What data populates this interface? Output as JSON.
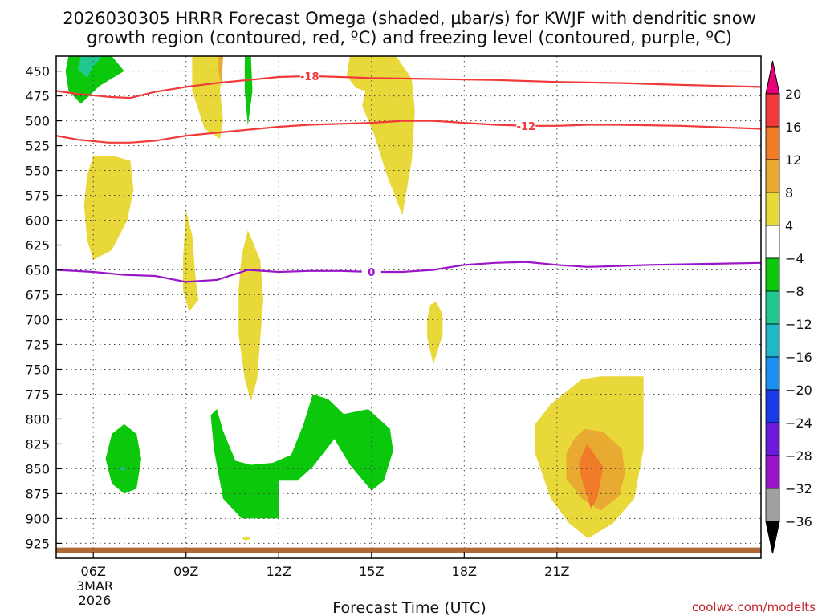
{
  "chart_data": {
    "type": "contour",
    "title_line1": "2026030305 HRRR Forecast Omega (shaded, µbar/s) for KWJF with dendritic snow",
    "title_line2": "growth region (contoured, red, ºC) and freezing level (contoured, purple, ºC)",
    "xlabel": "Forecast Time (UTC)",
    "credit": "coolwx.com/modelts",
    "date_label": [
      "3MAR",
      "2026"
    ],
    "x_range_hours": [
      4.8,
      27.6
    ],
    "x_ticks": [
      {
        "hour": 6,
        "label": "06Z"
      },
      {
        "hour": 9,
        "label": "09Z"
      },
      {
        "hour": 12,
        "label": "12Z"
      },
      {
        "hour": 15,
        "label": "15Z"
      },
      {
        "hour": 18,
        "label": "18Z"
      },
      {
        "hour": 21,
        "label": "21Z"
      }
    ],
    "y_range_mb": [
      435,
      940
    ],
    "y_ticks": [
      450,
      475,
      500,
      525,
      550,
      575,
      600,
      625,
      650,
      675,
      700,
      725,
      750,
      775,
      800,
      825,
      850,
      875,
      900,
      925
    ],
    "colorbar": {
      "labels": [
        "20",
        "16",
        "12",
        "8",
        "4",
        "−4",
        "−8",
        "−12",
        "−16",
        "−20",
        "−24",
        "−28",
        "−32",
        "−36"
      ],
      "top_arrow_color": "#e8007a",
      "bottom_arrow_color": "#000000",
      "colors": [
        "#f23a3a",
        "#f07c2a",
        "#e8aa30",
        "#e8d83a",
        "#ffffff",
        "#0cc80c",
        "#20c890",
        "#20b8c8",
        "#1a90f0",
        "#1a3ae8",
        "#6a1ad8",
        "#9a14c8",
        "#a0a0a0"
      ]
    },
    "series": [
      {
        "name": "temp -18C",
        "label": "-18",
        "color": "#f03a3a",
        "points": [
          [
            4.8,
            470
          ],
          [
            5.5,
            473
          ],
          [
            6.5,
            476
          ],
          [
            7.2,
            477
          ],
          [
            8.0,
            471
          ],
          [
            9.0,
            466
          ],
          [
            10.0,
            462
          ],
          [
            11.0,
            459
          ],
          [
            12.0,
            456
          ],
          [
            13.0,
            455
          ],
          [
            14.0,
            456
          ],
          [
            15.0,
            457
          ],
          [
            17.0,
            458
          ],
          [
            19.0,
            459
          ],
          [
            21.0,
            461
          ],
          [
            23.0,
            462
          ],
          [
            25.0,
            464
          ],
          [
            27.6,
            466
          ]
        ]
      },
      {
        "name": "temp -12C",
        "label": "-12",
        "color": "#f03a3a",
        "points": [
          [
            4.8,
            515
          ],
          [
            5.5,
            519
          ],
          [
            6.5,
            522
          ],
          [
            7.2,
            522
          ],
          [
            8.0,
            520
          ],
          [
            9.0,
            515
          ],
          [
            10.0,
            512
          ],
          [
            11.0,
            509
          ],
          [
            12.0,
            506
          ],
          [
            13.0,
            504
          ],
          [
            14.0,
            503
          ],
          [
            15.0,
            502
          ],
          [
            16.0,
            500
          ],
          [
            17.0,
            500
          ],
          [
            18.0,
            502
          ],
          [
            19.0,
            504
          ],
          [
            20.0,
            505
          ],
          [
            21.0,
            505
          ],
          [
            22.0,
            504
          ],
          [
            23.0,
            504
          ],
          [
            25.0,
            505
          ],
          [
            27.6,
            508
          ]
        ]
      },
      {
        "name": "freezing level 0C",
        "label": "0",
        "color": "#9a14c8",
        "points": [
          [
            4.8,
            650
          ],
          [
            6.0,
            652
          ],
          [
            7.0,
            655
          ],
          [
            8.0,
            656
          ],
          [
            9.0,
            662
          ],
          [
            10.0,
            660
          ],
          [
            11.0,
            650
          ],
          [
            12.0,
            652
          ],
          [
            13.0,
            651
          ],
          [
            14.0,
            651
          ],
          [
            15.0,
            652
          ],
          [
            16.0,
            652
          ],
          [
            17.0,
            650
          ],
          [
            18.0,
            645
          ],
          [
            19.0,
            643
          ],
          [
            20.0,
            642
          ],
          [
            21.0,
            645
          ],
          [
            22.0,
            647
          ],
          [
            23.0,
            646
          ],
          [
            24.0,
            645
          ],
          [
            27.6,
            643
          ]
        ]
      },
      {
        "name": "surface/ground",
        "color": "#b06838",
        "points": [
          [
            4.8,
            932
          ],
          [
            6.0,
            932
          ],
          [
            9.0,
            932
          ],
          [
            12.0,
            932
          ],
          [
            15.0,
            932
          ],
          [
            18.0,
            932
          ],
          [
            21.0,
            932
          ],
          [
            27.6,
            932
          ]
        ]
      }
    ],
    "regions": [
      {
        "category": "4 to 8 (upward motion)",
        "color": "#e8d83a",
        "points": [
          [
            9.2,
            435
          ],
          [
            10.2,
            435
          ],
          [
            10.1,
            470
          ],
          [
            10.2,
            500
          ],
          [
            10.1,
            518
          ],
          [
            9.6,
            508
          ],
          [
            9.2,
            470
          ]
        ]
      },
      {
        "category": "8 to 12",
        "color": "#e8aa30",
        "points": [
          [
            10.05,
            435
          ],
          [
            10.2,
            435
          ],
          [
            10.15,
            465
          ],
          [
            10.05,
            450
          ]
        ]
      },
      {
        "category": "4 to 8 (upward motion)",
        "color": "#e8d83a",
        "points": [
          [
            14.3,
            435
          ],
          [
            15.8,
            435
          ],
          [
            16.3,
            458
          ],
          [
            16.4,
            490
          ],
          [
            16.3,
            540
          ],
          [
            16.0,
            595
          ],
          [
            15.5,
            555
          ],
          [
            15.1,
            515
          ],
          [
            14.7,
            485
          ],
          [
            14.8,
            470
          ],
          [
            14.5,
            467
          ],
          [
            14.2,
            455
          ]
        ]
      },
      {
        "category": "4 to 8 (upward motion)",
        "color": "#e8d83a",
        "points": [
          [
            6.0,
            535
          ],
          [
            6.6,
            535
          ],
          [
            7.2,
            540
          ],
          [
            7.3,
            570
          ],
          [
            7.1,
            600
          ],
          [
            6.6,
            630
          ],
          [
            6.0,
            640
          ],
          [
            5.8,
            620
          ],
          [
            5.7,
            585
          ],
          [
            5.8,
            555
          ]
        ]
      },
      {
        "category": "4 to 8 (upward motion)",
        "color": "#e8d83a",
        "points": [
          [
            9.0,
            590
          ],
          [
            9.2,
            615
          ],
          [
            9.3,
            655
          ],
          [
            9.4,
            680
          ],
          [
            9.1,
            692
          ],
          [
            8.9,
            670
          ],
          [
            8.9,
            640
          ]
        ]
      },
      {
        "category": "4 to 8 (upward motion)",
        "color": "#e8d83a",
        "points": [
          [
            11.0,
            610
          ],
          [
            11.4,
            640
          ],
          [
            11.5,
            680
          ],
          [
            11.4,
            720
          ],
          [
            11.3,
            760
          ],
          [
            11.1,
            782
          ],
          [
            10.9,
            760
          ],
          [
            10.7,
            715
          ],
          [
            10.7,
            670
          ],
          [
            10.8,
            635
          ]
        ]
      },
      {
        "category": "4 to 8 (upward motion)",
        "color": "#e8d83a",
        "points": [
          [
            17.1,
            682
          ],
          [
            17.3,
            695
          ],
          [
            17.3,
            715
          ],
          [
            17.1,
            735
          ],
          [
            17.0,
            745
          ],
          [
            16.8,
            718
          ],
          [
            16.8,
            700
          ],
          [
            16.9,
            685
          ]
        ]
      },
      {
        "category": "4 to 8 (upward motion)",
        "color": "#e8d83a",
        "points": [
          [
            10.95,
            918
          ],
          [
            11.1,
            920
          ],
          [
            10.95,
            922
          ],
          [
            10.8,
            920
          ]
        ]
      },
      {
        "category": "4 to 8 (upward motion)",
        "color": "#e8d83a",
        "points": [
          [
            21.8,
            760
          ],
          [
            22.4,
            757
          ],
          [
            23.2,
            757
          ],
          [
            23.8,
            757
          ],
          [
            23.8,
            830
          ],
          [
            23.5,
            880
          ],
          [
            22.8,
            905
          ],
          [
            22.0,
            920
          ],
          [
            21.4,
            905
          ],
          [
            20.8,
            880
          ],
          [
            20.3,
            835
          ],
          [
            20.3,
            805
          ],
          [
            20.8,
            785
          ]
        ]
      },
      {
        "category": "8 to 12",
        "color": "#e8aa30",
        "points": [
          [
            21.9,
            810
          ],
          [
            22.5,
            813
          ],
          [
            23.1,
            830
          ],
          [
            23.2,
            855
          ],
          [
            23.0,
            878
          ],
          [
            22.4,
            892
          ],
          [
            21.8,
            880
          ],
          [
            21.3,
            860
          ],
          [
            21.3,
            835
          ],
          [
            21.6,
            818
          ]
        ]
      },
      {
        "category": "12 to 16",
        "color": "#f07c2a",
        "points": [
          [
            21.97,
            825
          ],
          [
            22.5,
            848
          ],
          [
            22.3,
            880
          ],
          [
            22.1,
            890
          ],
          [
            21.8,
            860
          ],
          [
            21.7,
            845
          ]
        ]
      },
      {
        "category": "-8 to -4 (downward motion)",
        "color": "#0cc80c",
        "points": [
          [
            5.2,
            435
          ],
          [
            6.6,
            435
          ],
          [
            7.0,
            450
          ],
          [
            6.2,
            465
          ],
          [
            5.6,
            483
          ],
          [
            5.2,
            470
          ],
          [
            5.1,
            450
          ]
        ]
      },
      {
        "category": "-12 to -8",
        "color": "#20c890",
        "points": [
          [
            5.6,
            435
          ],
          [
            6.3,
            435
          ],
          [
            6.0,
            445
          ],
          [
            5.8,
            457
          ],
          [
            5.5,
            448
          ]
        ]
      },
      {
        "category": "-8 to -4 (downward motion)",
        "color": "#0cc80c",
        "points": [
          [
            10.9,
            435
          ],
          [
            11.1,
            435
          ],
          [
            11.15,
            470
          ],
          [
            11.0,
            505
          ],
          [
            10.9,
            470
          ]
        ]
      },
      {
        "category": "-8 to -4 (downward motion)",
        "color": "#0cc80c",
        "points": [
          [
            7.0,
            805
          ],
          [
            7.4,
            815
          ],
          [
            7.55,
            840
          ],
          [
            7.4,
            870
          ],
          [
            7.0,
            875
          ],
          [
            6.6,
            865
          ],
          [
            6.4,
            840
          ],
          [
            6.6,
            815
          ]
        ]
      },
      {
        "category": "-16 to -12",
        "color": "#20b8c8",
        "points": [
          [
            6.96,
            848
          ],
          [
            7.05,
            850
          ],
          [
            6.96,
            852
          ],
          [
            6.88,
            850
          ]
        ]
      },
      {
        "category": "-8 to -4 (downward motion)",
        "color": "#0cc80c",
        "points": [
          [
            10.0,
            790
          ],
          [
            10.2,
            812
          ],
          [
            10.6,
            842
          ],
          [
            11.1,
            846
          ],
          [
            11.8,
            844
          ],
          [
            12.4,
            836
          ],
          [
            12.8,
            805
          ],
          [
            13.1,
            775
          ],
          [
            13.6,
            780
          ],
          [
            14.1,
            795
          ],
          [
            14.9,
            790
          ],
          [
            15.6,
            810
          ],
          [
            15.7,
            832
          ],
          [
            15.4,
            862
          ],
          [
            15.0,
            872
          ],
          [
            14.3,
            846
          ],
          [
            13.8,
            820
          ],
          [
            13.1,
            848
          ],
          [
            12.6,
            862
          ],
          [
            12.0,
            862
          ],
          [
            12.0,
            900
          ],
          [
            10.8,
            900
          ],
          [
            10.2,
            880
          ],
          [
            9.9,
            830
          ],
          [
            9.8,
            796
          ]
        ]
      }
    ]
  }
}
